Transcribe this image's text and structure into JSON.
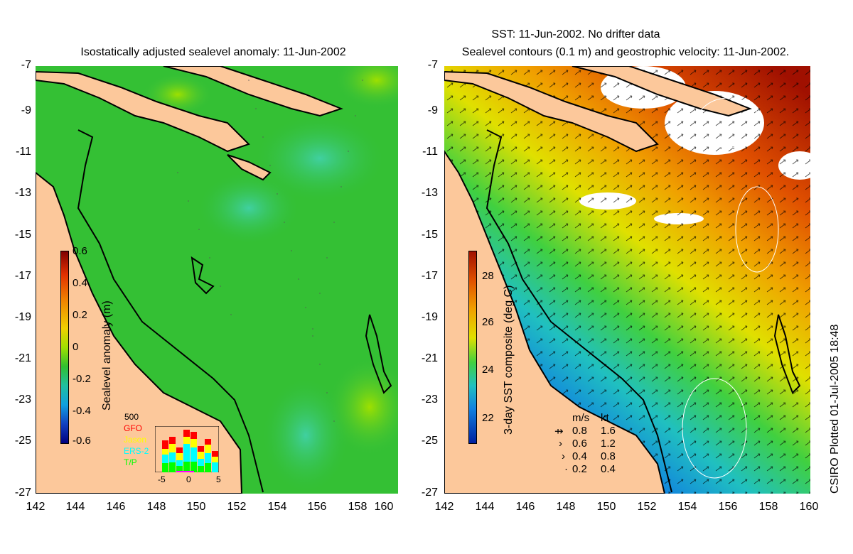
{
  "left_panel": {
    "title": "Isostatically adjusted sealevel anomaly: 11-Jun-2002",
    "colorbar_label": "Sealevel anomaly (m)",
    "colorbar_ticks": [
      "0.6",
      "0.4",
      "0.2",
      "0",
      "-0.2",
      "-0.4",
      "-0.6"
    ],
    "inset": {
      "top_label": "500",
      "satellites": [
        {
          "name": "GFO",
          "color": "#ff0000"
        },
        {
          "name": "Jason",
          "color": "#ffff00"
        },
        {
          "name": "ERS-2",
          "color": "#00ffff"
        },
        {
          "name": "T/P",
          "color": "#00ff00"
        }
      ],
      "xticks": [
        "-5",
        "0",
        "5"
      ]
    }
  },
  "right_panel": {
    "title_line1": "SST: 11-Jun-2002. No drifter data",
    "title_line2": "Sealevel contours (0.1 m) and geostrophic velocity: 11-Jun-2002.",
    "colorbar_label": "3-day SST composite (deg C)",
    "colorbar_ticks": [
      "28",
      "26",
      "24",
      "22"
    ],
    "velocity_legend": {
      "header_ms": "m/s",
      "header_kt": "kt",
      "rows": [
        {
          "ms": "0.8",
          "kt": "1.6"
        },
        {
          "ms": "0.6",
          "kt": "1.2"
        },
        {
          "ms": "0.4",
          "kt": "0.8"
        },
        {
          "ms": "0.2",
          "kt": "0.4"
        }
      ]
    }
  },
  "axes": {
    "lat_ticks": [
      "-7",
      "-9",
      "-11",
      "-13",
      "-15",
      "-17",
      "-19",
      "-21",
      "-23",
      "-25",
      "-27"
    ],
    "lon_ticks": [
      "142",
      "144",
      "146",
      "148",
      "150",
      "152",
      "154",
      "156",
      "158",
      "160"
    ]
  },
  "side_caption": "CSIRO Plotted 01-Jul-2005 18:48",
  "colors": {
    "land": "#fcc89b",
    "ocean_sla": "#33c433",
    "sst_warm": "#e07000",
    "sst_cool": "#1080e0"
  }
}
